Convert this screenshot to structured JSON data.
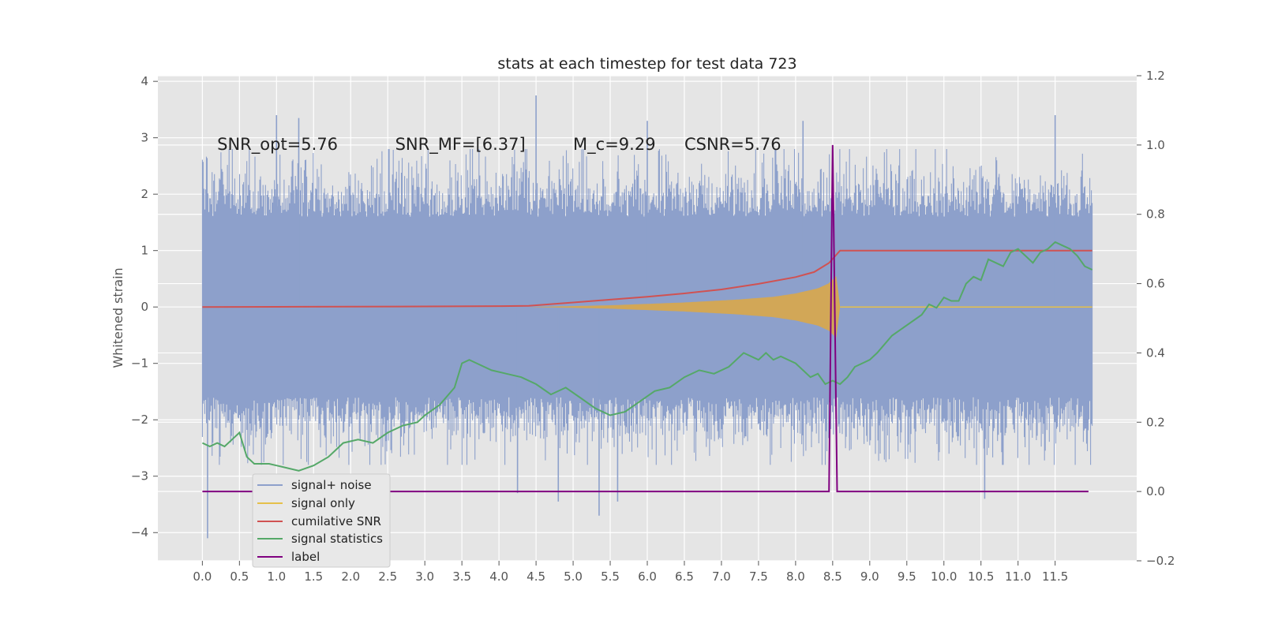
{
  "chart_data": {
    "type": "line",
    "title": "stats at each timestep for test data 723",
    "ylabel": "Whitened strain",
    "xlim": [
      -0.6,
      12.6
    ],
    "ylim": [
      -4.5,
      4.1
    ],
    "y2lim": [
      -0.2,
      1.2
    ],
    "x_ticks": [
      "0.0",
      "0.5",
      "1.0",
      "1.5",
      "2.0",
      "2.5",
      "3.0",
      "3.5",
      "4.0",
      "4.5",
      "5.0",
      "5.5",
      "6.0",
      "6.5",
      "7.0",
      "7.5",
      "8.0",
      "8.5",
      "9.0",
      "9.5",
      "10.0",
      "10.5",
      "11.0",
      "11.5"
    ],
    "y_ticks": [
      "4",
      "3",
      "2",
      "1",
      "0",
      "−1",
      "−2",
      "−3",
      "−4"
    ],
    "y2_ticks": [
      "1.2",
      "1.0",
      "0.8",
      "0.6",
      "0.4",
      "0.2",
      "0.0",
      "−0.2"
    ],
    "grid": true,
    "legend_position": "lower-left",
    "annotations": [
      {
        "text": "SNR_opt=5.76",
        "x": 0.2,
        "y": 2.9
      },
      {
        "text": "SNR_MF=[6.37]",
        "x": 2.6,
        "y": 2.9
      },
      {
        "text": "M_c=9.29",
        "x": 5.0,
        "y": 2.9
      },
      {
        "text": "CSNR=5.76",
        "x": 6.5,
        "y": 2.9
      }
    ],
    "series": [
      {
        "name": "signal+ noise",
        "color": "#8da0cb",
        "axis": "left",
        "style": "noise",
        "x_range": [
          0.0,
          12.0
        ],
        "band": [
          -1.6,
          1.6
        ],
        "typical_peaks": [
          -2.8,
          2.8
        ],
        "extreme_points": [
          [
            0.07,
            -4.1
          ],
          [
            1.0,
            3.4
          ],
          [
            1.3,
            3.35
          ],
          [
            4.25,
            -3.3
          ],
          [
            4.5,
            3.75
          ],
          [
            4.8,
            -3.45
          ],
          [
            5.35,
            -3.7
          ],
          [
            5.6,
            -3.45
          ],
          [
            6.0,
            3.3
          ],
          [
            8.1,
            3.3
          ],
          [
            10.55,
            -3.4
          ],
          [
            11.5,
            3.4
          ]
        ]
      },
      {
        "name": "signal only",
        "color": "#e5c04a",
        "axis": "left",
        "style": "chirp",
        "envelope": [
          [
            4.4,
            0.0
          ],
          [
            5.5,
            0.03
          ],
          [
            6.5,
            0.08
          ],
          [
            7.2,
            0.13
          ],
          [
            7.7,
            0.18
          ],
          [
            8.0,
            0.24
          ],
          [
            8.3,
            0.33
          ],
          [
            8.45,
            0.42
          ],
          [
            8.55,
            0.55
          ],
          [
            8.6,
            0.0
          ],
          [
            12.0,
            0.0
          ]
        ]
      },
      {
        "name": "cumilative SNR",
        "color": "#d05252",
        "axis": "left",
        "points": [
          [
            0.0,
            0.0
          ],
          [
            1.0,
            0.003
          ],
          [
            2.0,
            0.006
          ],
          [
            3.0,
            0.01
          ],
          [
            4.0,
            0.015
          ],
          [
            4.4,
            0.02
          ],
          [
            5.0,
            0.08
          ],
          [
            5.5,
            0.13
          ],
          [
            6.0,
            0.18
          ],
          [
            6.5,
            0.24
          ],
          [
            7.0,
            0.31
          ],
          [
            7.5,
            0.41
          ],
          [
            8.0,
            0.53
          ],
          [
            8.25,
            0.62
          ],
          [
            8.45,
            0.78
          ],
          [
            8.6,
            1.0
          ],
          [
            12.0,
            1.0
          ]
        ]
      },
      {
        "name": "signal statistics",
        "color": "#55a868",
        "axis": "right",
        "points": [
          [
            0.0,
            0.14
          ],
          [
            0.1,
            0.13
          ],
          [
            0.2,
            0.14
          ],
          [
            0.3,
            0.13
          ],
          [
            0.4,
            0.15
          ],
          [
            0.5,
            0.17
          ],
          [
            0.6,
            0.1
          ],
          [
            0.7,
            0.08
          ],
          [
            0.9,
            0.08
          ],
          [
            1.0,
            0.075
          ],
          [
            1.1,
            0.07
          ],
          [
            1.3,
            0.06
          ],
          [
            1.5,
            0.075
          ],
          [
            1.7,
            0.1
          ],
          [
            1.9,
            0.14
          ],
          [
            2.1,
            0.15
          ],
          [
            2.3,
            0.14
          ],
          [
            2.5,
            0.17
          ],
          [
            2.7,
            0.19
          ],
          [
            2.9,
            0.2
          ],
          [
            3.0,
            0.22
          ],
          [
            3.2,
            0.25
          ],
          [
            3.4,
            0.3
          ],
          [
            3.5,
            0.37
          ],
          [
            3.6,
            0.38
          ],
          [
            3.7,
            0.37
          ],
          [
            3.9,
            0.35
          ],
          [
            4.1,
            0.34
          ],
          [
            4.3,
            0.33
          ],
          [
            4.5,
            0.31
          ],
          [
            4.7,
            0.28
          ],
          [
            4.9,
            0.3
          ],
          [
            5.1,
            0.27
          ],
          [
            5.3,
            0.24
          ],
          [
            5.5,
            0.22
          ],
          [
            5.7,
            0.23
          ],
          [
            5.9,
            0.26
          ],
          [
            6.1,
            0.29
          ],
          [
            6.3,
            0.3
          ],
          [
            6.5,
            0.33
          ],
          [
            6.7,
            0.35
          ],
          [
            6.9,
            0.34
          ],
          [
            7.1,
            0.36
          ],
          [
            7.3,
            0.4
          ],
          [
            7.4,
            0.39
          ],
          [
            7.5,
            0.38
          ],
          [
            7.6,
            0.4
          ],
          [
            7.7,
            0.38
          ],
          [
            7.8,
            0.39
          ],
          [
            8.0,
            0.37
          ],
          [
            8.1,
            0.35
          ],
          [
            8.2,
            0.33
          ],
          [
            8.3,
            0.34
          ],
          [
            8.4,
            0.31
          ],
          [
            8.5,
            0.32
          ],
          [
            8.6,
            0.31
          ],
          [
            8.7,
            0.33
          ],
          [
            8.8,
            0.36
          ],
          [
            8.9,
            0.37
          ],
          [
            9.0,
            0.38
          ],
          [
            9.1,
            0.4
          ],
          [
            9.3,
            0.45
          ],
          [
            9.5,
            0.48
          ],
          [
            9.7,
            0.51
          ],
          [
            9.8,
            0.54
          ],
          [
            9.9,
            0.53
          ],
          [
            10.0,
            0.56
          ],
          [
            10.1,
            0.55
          ],
          [
            10.2,
            0.55
          ],
          [
            10.3,
            0.6
          ],
          [
            10.4,
            0.62
          ],
          [
            10.5,
            0.61
          ],
          [
            10.6,
            0.67
          ],
          [
            10.7,
            0.66
          ],
          [
            10.8,
            0.65
          ],
          [
            10.9,
            0.69
          ],
          [
            11.0,
            0.7
          ],
          [
            11.1,
            0.68
          ],
          [
            11.2,
            0.66
          ],
          [
            11.3,
            0.69
          ],
          [
            11.4,
            0.7
          ],
          [
            11.5,
            0.72
          ],
          [
            11.6,
            0.71
          ],
          [
            11.7,
            0.7
          ],
          [
            11.8,
            0.68
          ],
          [
            11.9,
            0.65
          ],
          [
            12.0,
            0.64
          ]
        ]
      },
      {
        "name": "label",
        "color": "#800080",
        "axis": "right",
        "points": [
          [
            0.0,
            0.0
          ],
          [
            8.45,
            0.0
          ],
          [
            8.5,
            1.0
          ],
          [
            8.56,
            0.0
          ],
          [
            11.95,
            0.0
          ]
        ]
      }
    ]
  }
}
